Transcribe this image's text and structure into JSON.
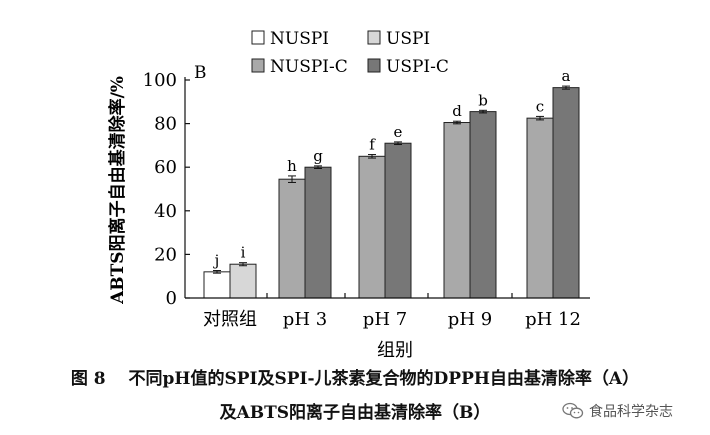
{
  "chart_data": {
    "type": "bar",
    "panel_label": "B",
    "xlabel": "组别",
    "ylabel": "ABTS阳离子自由基清除率/%",
    "ylim": [
      0,
      100
    ],
    "yticks": [
      "0",
      "20",
      "40",
      "60",
      "80",
      "100"
    ],
    "categories": [
      "对照组",
      "pH 3",
      "pH 7",
      "pH 9",
      "pH 12"
    ],
    "legend_position": "top",
    "series": [
      {
        "name": "NUSPI",
        "color": "#ffffff",
        "values": [
          12,
          null,
          null,
          null,
          null
        ],
        "errors": [
          0.6,
          null,
          null,
          null,
          null
        ],
        "labels": [
          "j",
          "",
          "",
          "",
          ""
        ]
      },
      {
        "name": "USPI",
        "color": "#d7d7d7",
        "values": [
          15.5,
          null,
          null,
          null,
          null
        ],
        "errors": [
          0.7,
          null,
          null,
          null,
          null
        ],
        "labels": [
          "i",
          "",
          "",
          "",
          ""
        ]
      },
      {
        "name": "NUSPI-C",
        "color": "#a9a9a9",
        "values": [
          null,
          54.5,
          65,
          80.5,
          82.5
        ],
        "errors": [
          null,
          1.5,
          0.8,
          0.6,
          0.8
        ],
        "labels": [
          "",
          "h",
          "f",
          "d",
          "c"
        ]
      },
      {
        "name": "USPI-C",
        "color": "#777777",
        "values": [
          null,
          60,
          71,
          85.5,
          96.5
        ],
        "errors": [
          null,
          0.6,
          0.6,
          0.6,
          0.7
        ],
        "labels": [
          "",
          "g",
          "e",
          "b",
          "a"
        ]
      }
    ]
  },
  "caption": {
    "line1": "图 8　 不同pH值的SPI及SPI-儿茶素复合物的DPPH自由基清除率（A）",
    "line2": "及ABTS阳离子自由基清除率（B）"
  },
  "watermark": {
    "text": "食品科学杂志",
    "icon": "wechat-icon"
  }
}
